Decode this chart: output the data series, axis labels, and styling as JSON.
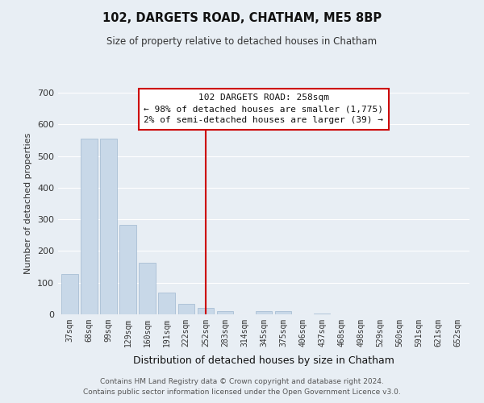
{
  "title": "102, DARGETS ROAD, CHATHAM, ME5 8BP",
  "subtitle": "Size of property relative to detached houses in Chatham",
  "xlabel": "Distribution of detached houses by size in Chatham",
  "ylabel": "Number of detached properties",
  "bar_labels": [
    "37sqm",
    "68sqm",
    "99sqm",
    "129sqm",
    "160sqm",
    "191sqm",
    "222sqm",
    "252sqm",
    "283sqm",
    "314sqm",
    "345sqm",
    "375sqm",
    "406sqm",
    "437sqm",
    "468sqm",
    "498sqm",
    "529sqm",
    "560sqm",
    "591sqm",
    "621sqm",
    "652sqm"
  ],
  "bar_values": [
    128,
    555,
    555,
    283,
    163,
    68,
    32,
    20,
    10,
    0,
    10,
    10,
    0,
    3,
    0,
    0,
    0,
    0,
    0,
    0,
    0
  ],
  "bar_color": "#c8d8e8",
  "bar_edge_color": "#a0b8d0",
  "vline_position": 7.5,
  "vline_color": "#cc0000",
  "annotation_title": "102 DARGETS ROAD: 258sqm",
  "annotation_line1": "← 98% of detached houses are smaller (1,775)",
  "annotation_line2": "2% of semi-detached houses are larger (39) →",
  "annotation_box_facecolor": "#ffffff",
  "annotation_box_edgecolor": "#cc0000",
  "ylim_min": 0,
  "ylim_max": 700,
  "yticks": [
    0,
    100,
    200,
    300,
    400,
    500,
    600,
    700
  ],
  "footer_line1": "Contains HM Land Registry data © Crown copyright and database right 2024.",
  "footer_line2": "Contains public sector information licensed under the Open Government Licence v3.0.",
  "bg_color": "#e8eef4",
  "grid_color": "#ffffff",
  "text_color_dark": "#111111",
  "text_color_mid": "#333333",
  "text_color_light": "#555555"
}
